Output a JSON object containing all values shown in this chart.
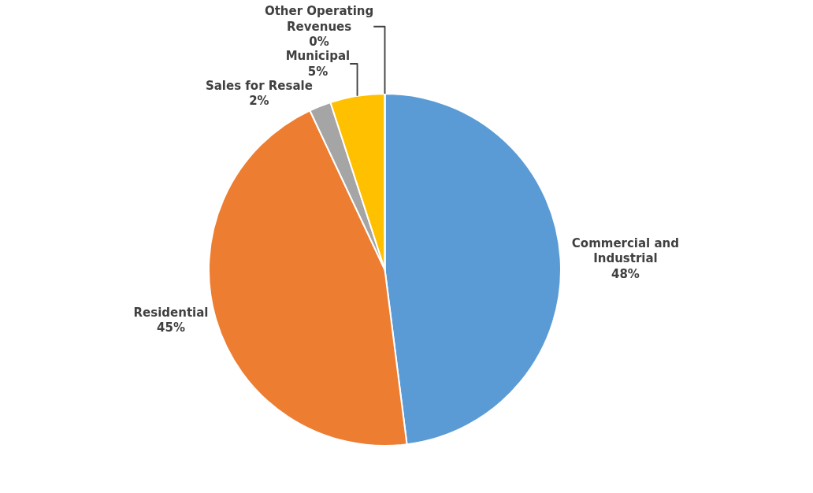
{
  "chart_data": {
    "type": "pie",
    "categories": [
      "Commercial and Industrial",
      "Residential",
      "Sales for Resale",
      "Municipal",
      "Other Operating Revenues"
    ],
    "values": [
      48,
      45,
      2,
      5,
      0
    ],
    "colors": [
      "#5b9bd5",
      "#ed7d31",
      "#a5a5a5",
      "#ffc000",
      "#4472c4"
    ],
    "value_labels": [
      "48%",
      "45%",
      "2%",
      "5%",
      "0%"
    ],
    "legend": false
  }
}
